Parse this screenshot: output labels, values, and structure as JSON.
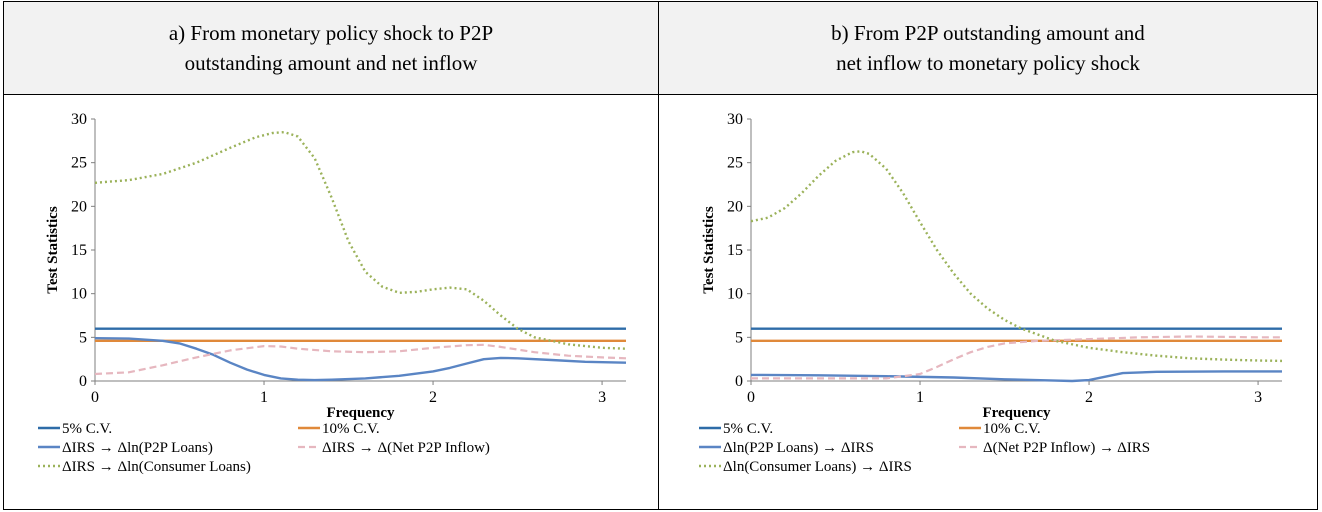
{
  "panels": [
    {
      "title": "a)  From monetary policy shock to P2P\noutstanding amount and net inflow",
      "legend": [
        "5% C.V.",
        "10% C.V.",
        "ΔIRS → Δln(P2P Loans)",
        "ΔIRS → Δ(Net P2P Inflow)",
        "ΔIRS → Δln(Consumer Loans)"
      ]
    },
    {
      "title": "b) From P2P outstanding amount and\nnet inflow to monetary policy shock",
      "legend": [
        "5% C.V.",
        "10% C.V.",
        "Δln(P2P Loans) → ΔIRS",
        "Δ(Net P2P Inflow) → ΔIRS",
        "Δln(Consumer Loans) → ΔIRS"
      ]
    }
  ],
  "colors": {
    "cv5": "#2e6ca8",
    "cv10": "#e0893a",
    "p2p": "#5a85c4",
    "net": "#e6b7bf",
    "consumer": "#9bb25a"
  },
  "chart_data": [
    {
      "type": "line",
      "xlabel": "Frequency",
      "ylabel": "Test Statistics",
      "xlim": [
        0,
        3.14159
      ],
      "ylim": [
        0,
        30
      ],
      "xticks": [
        0,
        1,
        2,
        3
      ],
      "yticks": [
        0,
        5,
        10,
        15,
        20,
        25,
        30
      ],
      "legend_position": "bottom",
      "series": [
        {
          "name": "5% C.V.",
          "style": "solid",
          "x": [
            0,
            3.14159
          ],
          "y": [
            5.99,
            5.99
          ]
        },
        {
          "name": "10% C.V.",
          "style": "solid",
          "x": [
            0,
            3.14159
          ],
          "y": [
            4.6,
            4.6
          ]
        },
        {
          "name": "ΔIRS → Δln(P2P Loans)",
          "style": "solid",
          "x": [
            0,
            0.2,
            0.4,
            0.5,
            0.6,
            0.7,
            0.8,
            0.9,
            1.0,
            1.1,
            1.2,
            1.3,
            1.4,
            1.6,
            1.8,
            2.0,
            2.1,
            2.2,
            2.3,
            2.4,
            2.5,
            2.7,
            2.9,
            3.14159
          ],
          "y": [
            4.9,
            4.85,
            4.6,
            4.3,
            3.7,
            3.0,
            2.1,
            1.3,
            0.7,
            0.3,
            0.15,
            0.1,
            0.15,
            0.3,
            0.6,
            1.1,
            1.5,
            2.0,
            2.5,
            2.65,
            2.6,
            2.4,
            2.2,
            2.1
          ]
        },
        {
          "name": "ΔIRS → Δ(Net P2P Inflow)",
          "style": "dashed",
          "x": [
            0,
            0.2,
            0.4,
            0.6,
            0.8,
            1.0,
            1.1,
            1.2,
            1.4,
            1.6,
            1.8,
            2.0,
            2.2,
            2.3,
            2.4,
            2.6,
            2.8,
            3.0,
            3.14159
          ],
          "y": [
            0.8,
            1.0,
            1.8,
            2.7,
            3.5,
            4.0,
            3.95,
            3.7,
            3.4,
            3.3,
            3.4,
            3.8,
            4.1,
            4.15,
            3.9,
            3.3,
            2.9,
            2.7,
            2.6
          ]
        },
        {
          "name": "ΔIRS → Δln(Consumer Loans)",
          "style": "dotted",
          "x": [
            0,
            0.2,
            0.4,
            0.6,
            0.8,
            0.95,
            1.05,
            1.12,
            1.2,
            1.3,
            1.4,
            1.5,
            1.6,
            1.7,
            1.8,
            1.9,
            2.0,
            2.1,
            2.2,
            2.3,
            2.4,
            2.5,
            2.6,
            2.8,
            3.0,
            3.14159
          ],
          "y": [
            22.7,
            23.0,
            23.7,
            25.0,
            26.7,
            27.9,
            28.4,
            28.5,
            28.0,
            25.5,
            21.0,
            16.0,
            12.5,
            10.8,
            10.1,
            10.2,
            10.5,
            10.7,
            10.5,
            9.2,
            7.5,
            6.0,
            5.0,
            4.2,
            3.8,
            3.7
          ]
        }
      ]
    },
    {
      "type": "line",
      "xlabel": "Frequency",
      "ylabel": "Test Statistics",
      "xlim": [
        0,
        3.14159
      ],
      "ylim": [
        0,
        30
      ],
      "xticks": [
        0,
        1,
        2,
        3
      ],
      "yticks": [
        0,
        5,
        10,
        15,
        20,
        25,
        30
      ],
      "legend_position": "bottom",
      "series": [
        {
          "name": "5% C.V.",
          "style": "solid",
          "x": [
            0,
            3.14159
          ],
          "y": [
            5.99,
            5.99
          ]
        },
        {
          "name": "10% C.V.",
          "style": "solid",
          "x": [
            0,
            3.14159
          ],
          "y": [
            4.6,
            4.6
          ]
        },
        {
          "name": "Δln(P2P Loans) → ΔIRS",
          "style": "solid",
          "x": [
            0,
            0.4,
            0.8,
            1.2,
            1.5,
            1.8,
            1.9,
            2.0,
            2.1,
            2.2,
            2.4,
            2.8,
            3.14159
          ],
          "y": [
            0.7,
            0.65,
            0.55,
            0.4,
            0.2,
            0.05,
            0.0,
            0.1,
            0.5,
            0.9,
            1.05,
            1.1,
            1.1
          ]
        },
        {
          "name": "Δ(Net P2P Inflow) → ΔIRS",
          "style": "dashed",
          "x": [
            0,
            0.4,
            0.8,
            1.0,
            1.1,
            1.2,
            1.3,
            1.4,
            1.5,
            1.7,
            2.0,
            2.3,
            2.6,
            3.0,
            3.14159
          ],
          "y": [
            0.3,
            0.3,
            0.3,
            0.8,
            1.6,
            2.5,
            3.3,
            3.9,
            4.3,
            4.6,
            4.8,
            5.0,
            5.1,
            5.0,
            5.0
          ]
        },
        {
          "name": "Δln(Consumer Loans) → ΔIRS",
          "style": "dotted",
          "x": [
            0,
            0.1,
            0.2,
            0.3,
            0.4,
            0.5,
            0.6,
            0.65,
            0.7,
            0.8,
            0.9,
            1.0,
            1.1,
            1.2,
            1.3,
            1.4,
            1.5,
            1.6,
            1.8,
            2.0,
            2.2,
            2.4,
            2.6,
            2.8,
            3.0,
            3.14159
          ],
          "y": [
            18.3,
            18.7,
            19.8,
            21.5,
            23.5,
            25.2,
            26.2,
            26.3,
            26.0,
            24.3,
            21.5,
            18.2,
            15.0,
            12.3,
            10.0,
            8.3,
            7.0,
            6.0,
            4.6,
            3.8,
            3.3,
            2.9,
            2.6,
            2.45,
            2.35,
            2.3
          ]
        }
      ]
    }
  ]
}
